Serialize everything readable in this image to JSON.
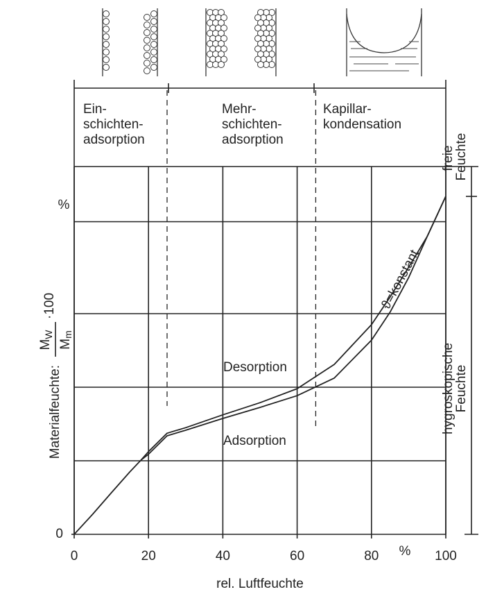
{
  "chart_data": {
    "type": "line",
    "x_label": "rel. Luftfeuchte",
    "x_unit_label": "%",
    "y_unit_label": "%",
    "y_label_parts": {
      "prefix": "Materialfeuchte:",
      "numerator": "M",
      "numerator_sub": "W",
      "denominator": "M",
      "denominator_sub": "m",
      "suffix": "·100"
    },
    "xlim": [
      0,
      100
    ],
    "xticks": [
      0,
      20,
      40,
      60,
      80,
      100
    ],
    "ylim": [
      0,
      100
    ],
    "yticks": [
      0
    ],
    "ygrid": [
      20,
      40,
      60,
      85
    ],
    "zone_bounds": [
      25,
      65
    ],
    "zones": [
      {
        "line1": "Ein-",
        "line2": "schichten-",
        "line3": "adsorption"
      },
      {
        "line1": "Mehr-",
        "line2": "schichten-",
        "line3": "adsorption"
      },
      {
        "line1": "Kapillar-",
        "line2": "kondensation"
      }
    ],
    "right_labels": {
      "free_1": "freie",
      "free_2": "Feuchte",
      "hygro_1": "hygroskopische",
      "hygro_2": "Feuchte"
    },
    "curve_note": "ϑ=konstant",
    "x": [
      0,
      5,
      10,
      15,
      18,
      20,
      25,
      30,
      40,
      50,
      60,
      70,
      80,
      85,
      90,
      95,
      100
    ],
    "series": [
      {
        "name": "Adsorption",
        "color": "#222",
        "values": [
          0,
          5.5,
          11.3,
          17,
          20.2,
          21.8,
          26.8,
          28.3,
          31.5,
          34.5,
          37.7,
          42.5,
          52.8,
          60.4,
          69.8,
          81,
          91.9
        ]
      },
      {
        "name": "Desorption",
        "color": "#222",
        "values": [
          null,
          null,
          null,
          null,
          20.2,
          22.5,
          27.5,
          29,
          32.5,
          35.8,
          39.6,
          46.2,
          57,
          64.5,
          72.6,
          81,
          91.9
        ]
      }
    ]
  }
}
